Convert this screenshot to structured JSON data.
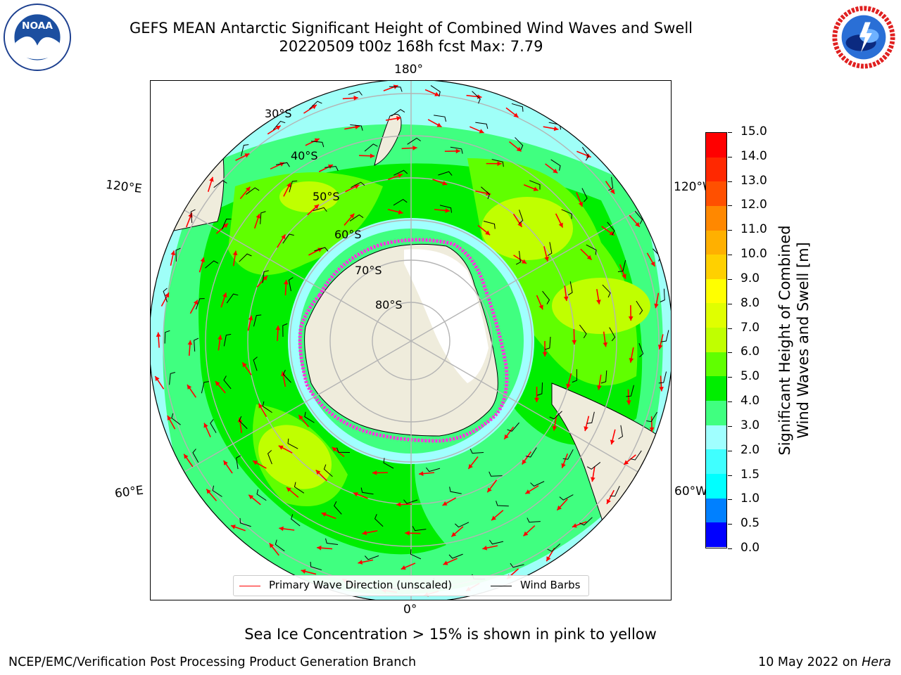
{
  "title_line1": "GEFS MEAN Antarctic Significant Height of Combined Wind Waves and Swell",
  "title_line2": "20220509 t00z 168h fcst   Max: 7.79",
  "logos": {
    "left": "NOAA",
    "right": "NATIONAL WEATHER SERVICE"
  },
  "longitude_labels": [
    "180°",
    "120°W",
    "60°W",
    "0°",
    "60°E",
    "120°E"
  ],
  "latitude_labels": [
    "30°S",
    "40°S",
    "50°S",
    "60°S",
    "70°S",
    "80°S"
  ],
  "legend": {
    "wave_label": "Primary Wave Direction (unscaled)",
    "wind_label": "Wind Barbs",
    "wave_color": "#ff0000",
    "wind_color": "#000000"
  },
  "colorbar": {
    "label_line1": "Significant Height of Combined",
    "label_line2": "Wind Waves and Swell [m]",
    "ticks": [
      "15.0",
      "14.0",
      "13.0",
      "12.0",
      "11.0",
      "10.0",
      "9.0",
      "8.0",
      "7.0",
      "6.0",
      "5.0",
      "4.0",
      "3.0",
      "2.0",
      "1.5",
      "1.0",
      "0.5",
      "0.0"
    ],
    "colors_bottom_to_top": [
      "#0000ff",
      "#0080ff",
      "#00ffff",
      "#40ffff",
      "#a0ffff",
      "#40ff80",
      "#00ee00",
      "#60ff00",
      "#c0ff00",
      "#e0ff00",
      "#ffff00",
      "#ffd000",
      "#ffb000",
      "#ff8800",
      "#ff5000",
      "#ff2800",
      "#ff0000"
    ]
  },
  "caption": "Sea Ice Concentration > 15% is shown in pink to yellow",
  "footer_left": "NCEP/EMC/Verification Post Processing Product Generation Branch",
  "footer_right_prefix": "10 May 2022 on ",
  "footer_right_machine": "Hera"
}
